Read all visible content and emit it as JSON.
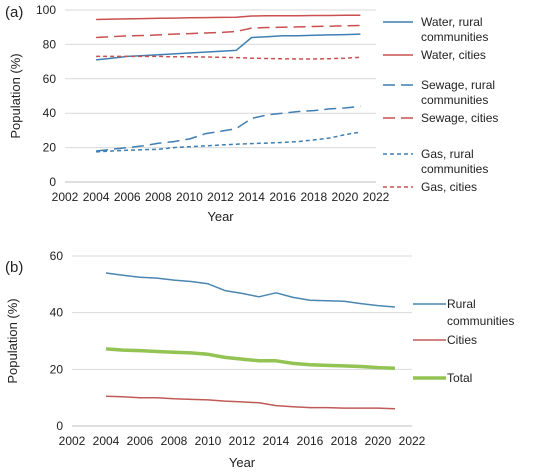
{
  "chart_data": [
    {
      "type": "line",
      "panel_label": "(a)",
      "xlabel": "Year",
      "ylabel": "Population (%)",
      "xlim": [
        2002,
        2022
      ],
      "ylim": [
        0,
        100
      ],
      "xticks": [
        2002,
        2004,
        2006,
        2008,
        2010,
        2012,
        2014,
        2016,
        2018,
        2020,
        2022
      ],
      "yticks": [
        0,
        20,
        40,
        60,
        80,
        100
      ],
      "grid": "horizontal",
      "legend_position": "right",
      "x": [
        2004,
        2005,
        2006,
        2007,
        2008,
        2009,
        2010,
        2011,
        2012,
        2013,
        2014,
        2015,
        2016,
        2017,
        2018,
        2019,
        2020,
        2021
      ],
      "series": [
        {
          "name": "Water, rural communities",
          "legend_lines": [
            "Water, rural",
            "communities"
          ],
          "color": "#3f7fb3",
          "dash": "solid",
          "values": [
            71,
            72,
            73,
            73.5,
            74,
            74.5,
            75,
            75.5,
            76,
            76.5,
            84,
            84.5,
            85,
            85,
            85.3,
            85.5,
            85.7,
            86
          ]
        },
        {
          "name": "Water, cities",
          "legend_lines": [
            "Water, cities"
          ],
          "color": "#c9504f",
          "dash": "solid",
          "values": [
            94.5,
            94.7,
            94.8,
            95,
            95.2,
            95.3,
            95.5,
            95.6,
            95.7,
            95.8,
            96.5,
            96.6,
            96.7,
            96.7,
            96.8,
            96.8,
            96.9,
            97
          ]
        },
        {
          "name": "Sewage, rural communities",
          "legend_lines": [
            "Sewage, rural",
            "communities"
          ],
          "color": "#3f7fb3",
          "dash": "long",
          "values": [
            18,
            19,
            20,
            21,
            22.5,
            23.5,
            25,
            28,
            29.5,
            31,
            37,
            39,
            40,
            41,
            41.5,
            42.5,
            43,
            44
          ]
        },
        {
          "name": "Sewage, cities",
          "legend_lines": [
            "Sewage, cities"
          ],
          "color": "#c9504f",
          "dash": "long",
          "values": [
            84,
            84.5,
            85,
            85.2,
            85.5,
            86,
            86.3,
            86.6,
            87,
            87.5,
            89.5,
            89.8,
            90,
            90.2,
            90.4,
            90.6,
            90.8,
            91
          ]
        },
        {
          "name": "Gas, rural communities",
          "legend_lines": [
            "Gas, rural",
            "communities"
          ],
          "color": "#3f7fb3",
          "dash": "short",
          "values": [
            17.5,
            18,
            18.5,
            18.8,
            19,
            20,
            20.5,
            21,
            21.5,
            22,
            22.3,
            22.6,
            23,
            23.5,
            24.5,
            25.5,
            27.5,
            29
          ]
        },
        {
          "name": "Gas, cities",
          "legend_lines": [
            "Gas, cities"
          ],
          "color": "#c9504f",
          "dash": "short",
          "values": [
            73,
            73,
            73,
            73,
            73,
            72.8,
            72.8,
            72.7,
            72.5,
            72.3,
            72,
            71.8,
            71.6,
            71.5,
            71.5,
            71.7,
            72,
            72.5
          ]
        }
      ]
    },
    {
      "type": "line",
      "panel_label": "(b)",
      "xlabel": "Year",
      "ylabel": "Population (%)",
      "xlim": [
        2002,
        2022
      ],
      "ylim": [
        0,
        60
      ],
      "xticks": [
        2002,
        2004,
        2006,
        2008,
        2010,
        2012,
        2014,
        2016,
        2018,
        2020,
        2022
      ],
      "yticks": [
        0,
        20,
        40,
        60
      ],
      "grid": "horizontal",
      "legend_position": "right",
      "x": [
        2004,
        2005,
        2006,
        2007,
        2008,
        2009,
        2010,
        2011,
        2012,
        2013,
        2014,
        2015,
        2016,
        2017,
        2018,
        2019,
        2020,
        2021
      ],
      "series": [
        {
          "name": "Rural communities",
          "legend_lines": [
            "Rural",
            "communities"
          ],
          "color": "#4a86b0",
          "width": 1.5,
          "values": [
            54,
            53.2,
            52.5,
            52.2,
            51.5,
            51,
            50.2,
            47.8,
            46.8,
            45.6,
            47,
            45.4,
            44.4,
            44.2,
            44,
            43.2,
            42.5,
            42
          ]
        },
        {
          "name": "Cities",
          "legend_lines": [
            "Cities"
          ],
          "color": "#c05a58",
          "width": 1.5,
          "values": [
            10.5,
            10.3,
            10,
            10,
            9.6,
            9.4,
            9.2,
            8.8,
            8.5,
            8.2,
            7.2,
            6.8,
            6.5,
            6.5,
            6.3,
            6.3,
            6.3,
            6.1
          ]
        },
        {
          "name": "Total",
          "legend_lines": [
            "Total"
          ],
          "color": "#92c353",
          "width": 3.5,
          "values": [
            27.2,
            26.8,
            26.6,
            26.3,
            26,
            25.8,
            25.3,
            24.2,
            23.6,
            23,
            23,
            22.1,
            21.6,
            21.4,
            21.2,
            21,
            20.6,
            20.4
          ]
        }
      ]
    }
  ]
}
